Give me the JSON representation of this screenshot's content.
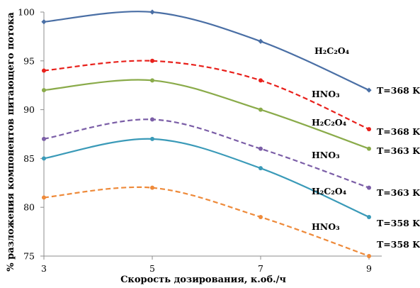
{
  "chart_data": {
    "type": "line",
    "xlabel": "Скорость дозирования, к.об./ч",
    "ylabel": "% разложения компонентов питающего потока",
    "xlim": [
      3,
      9
    ],
    "ylim": [
      75,
      100
    ],
    "x_ticks": [
      "3",
      "5",
      "7",
      "9"
    ],
    "y_ticks": [
      "75",
      "80",
      "85",
      "90",
      "95",
      "100"
    ],
    "grid": false,
    "x": [
      3,
      5,
      7,
      9
    ],
    "series": [
      {
        "values": [
          99,
          100,
          97,
          92
        ],
        "color": "#4a6fa5",
        "style": "solid",
        "marker": "diamond",
        "label": "H₂C₂O₄",
        "temp": "T=368 K"
      },
      {
        "values": [
          94,
          95,
          93,
          88
        ],
        "color": "#e8201b",
        "style": "dashed",
        "marker": "circle",
        "label": "HNO₃",
        "temp": "T=368 K"
      },
      {
        "values": [
          92,
          93,
          90,
          86
        ],
        "color": "#8aab4a",
        "style": "solid",
        "marker": "circle",
        "label": "H₂C₂O₄",
        "temp": "T=363 K"
      },
      {
        "values": [
          87,
          89,
          86,
          82
        ],
        "color": "#7b5ea7",
        "style": "dashed",
        "marker": "circle",
        "label": "HNO₃",
        "temp": "T=363 K"
      },
      {
        "values": [
          85,
          87,
          84,
          79
        ],
        "color": "#3a9ab8",
        "style": "solid",
        "marker": "circle",
        "label": "H₂C₂O₄",
        "temp": "T=358 K"
      },
      {
        "values": [
          81,
          82,
          79,
          75
        ],
        "color": "#ee8a3a",
        "style": "dashed",
        "marker": "circle",
        "label": "HNO₃",
        "temp": "T=358 K"
      }
    ]
  }
}
